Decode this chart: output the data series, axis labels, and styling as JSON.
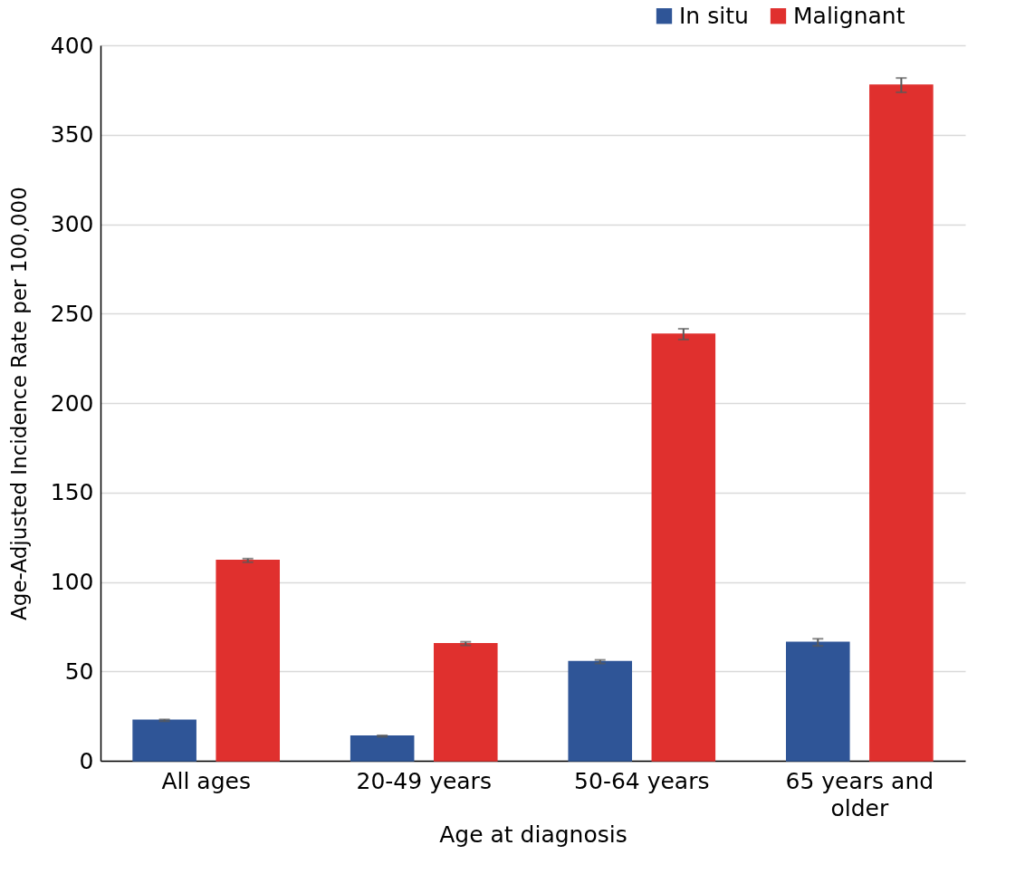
{
  "chart_data": {
    "type": "bar",
    "xlabel": "Age at diagnosis",
    "ylabel": "Age-Adjusted Incidence Rate per 100,000",
    "categories": [
      "All ages",
      "20-49 years",
      "50-64 years",
      "65 years and older"
    ],
    "series": [
      {
        "name": "In situ",
        "color": "#2f5597",
        "values": [
          22.6,
          13.8,
          55.4,
          66.2
        ],
        "errors": [
          0.5,
          0.4,
          1,
          2
        ]
      },
      {
        "name": "Malignant",
        "color": "#e0302e",
        "values": [
          112.0,
          65.5,
          238.5,
          377.7
        ],
        "errors": [
          1,
          1,
          3,
          4
        ]
      }
    ],
    "ylim": [
      0,
      400
    ],
    "yticks": [
      0,
      50,
      100,
      150,
      200,
      250,
      300,
      350,
      400
    ],
    "grid": "y",
    "legend": "top right"
  }
}
